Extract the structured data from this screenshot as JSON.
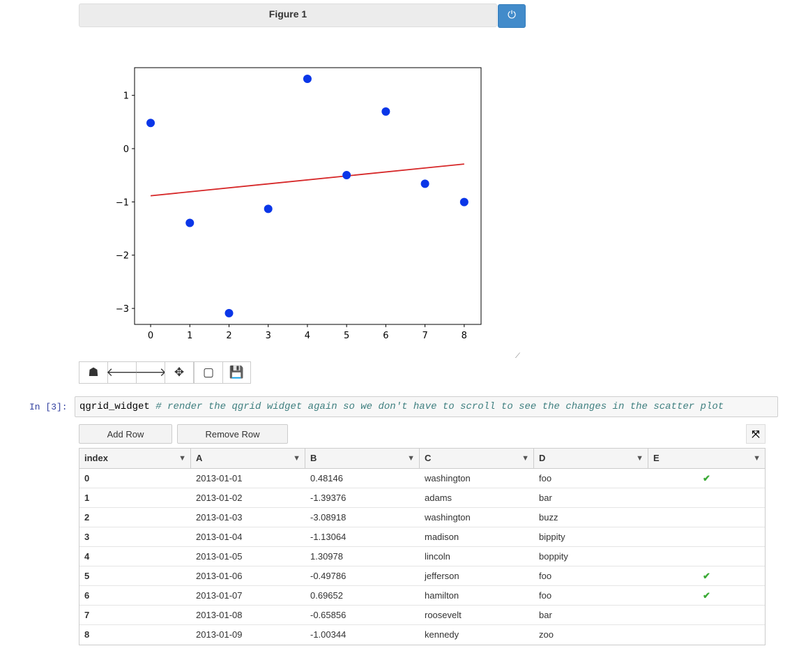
{
  "figure": {
    "title": "Figure 1",
    "power_icon": "power-icon"
  },
  "toolbar": [
    {
      "name": "home",
      "icon": "☗"
    },
    {
      "name": "back",
      "icon": "🡐"
    },
    {
      "name": "forward",
      "icon": "🡒"
    },
    {
      "name": "pan",
      "icon": "✥"
    },
    {
      "name": "zoom-rect",
      "icon": "▢"
    },
    {
      "name": "save",
      "icon": "💾"
    }
  ],
  "cell": {
    "prompt": "In [3]:",
    "code": "qgrid_widget",
    "comment": "# render the qgrid widget again so we don't have to scroll to see the changes in the scatter plot"
  },
  "buttons": {
    "add_row": "Add Row",
    "remove_row": "Remove Row",
    "fullscreen_icon": "expand-icon"
  },
  "table": {
    "columns": [
      "index",
      "A",
      "B",
      "C",
      "D",
      "E"
    ],
    "rows": [
      [
        "0",
        "2013-01-01",
        "0.48146",
        "washington",
        "foo",
        true
      ],
      [
        "1",
        "2013-01-02",
        "-1.39376",
        "adams",
        "bar",
        false
      ],
      [
        "2",
        "2013-01-03",
        "-3.08918",
        "washington",
        "buzz",
        false
      ],
      [
        "3",
        "2013-01-04",
        "-1.13064",
        "madison",
        "bippity",
        false
      ],
      [
        "4",
        "2013-01-05",
        "1.30978",
        "lincoln",
        "boppity",
        false
      ],
      [
        "5",
        "2013-01-06",
        "-0.49786",
        "jefferson",
        "foo",
        true
      ],
      [
        "6",
        "2013-01-07",
        "0.69652",
        "hamilton",
        "foo",
        true
      ],
      [
        "7",
        "2013-01-08",
        "-0.65856",
        "roosevelt",
        "bar",
        false
      ],
      [
        "8",
        "2013-01-09",
        "-1.00344",
        "kennedy",
        "zoo",
        false
      ]
    ]
  },
  "chart_data": {
    "type": "scatter",
    "x": [
      0,
      1,
      2,
      3,
      4,
      5,
      6,
      7,
      8
    ],
    "y": [
      0.48146,
      -1.39376,
      -3.08918,
      -1.13064,
      1.30978,
      -0.49786,
      0.69652,
      -0.65856,
      -1.00344
    ],
    "fit_line": {
      "x": [
        0,
        8
      ],
      "y": [
        -0.885,
        -0.289
      ],
      "color": "#d62728"
    },
    "point_color": "#0a36e8",
    "xlim": [
      -0.41,
      8.43
    ],
    "ylim": [
      -3.3,
      1.52
    ],
    "xticks": [
      "0",
      "1",
      "2",
      "3",
      "4",
      "5",
      "6",
      "7",
      "8"
    ],
    "yticks": [
      "1",
      "0",
      "−1",
      "−2",
      "−3"
    ],
    "ytick_values": [
      1,
      0,
      -1,
      -2,
      -3
    ],
    "grid": false
  }
}
